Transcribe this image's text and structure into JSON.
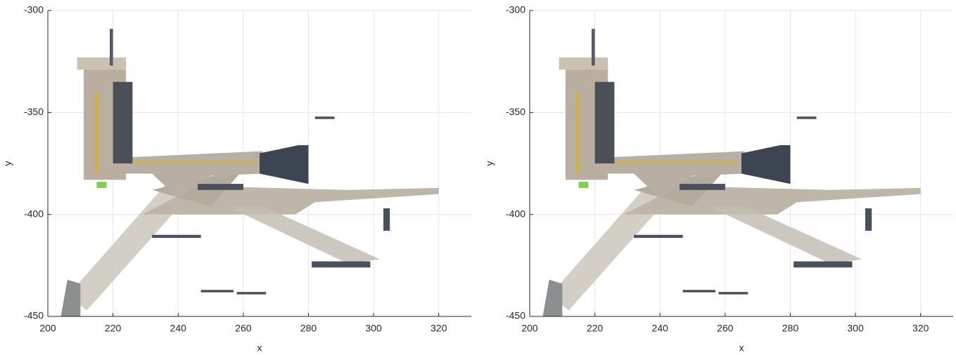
{
  "chart_data": [
    {
      "type": "pointcloud",
      "xlabel": "x",
      "ylabel": "y",
      "xlim": [
        200,
        330
      ],
      "ylim": [
        -450,
        -300
      ],
      "xticks": [
        200,
        220,
        240,
        260,
        280,
        300,
        320
      ],
      "yticks": [
        -450,
        -400,
        -350,
        -300
      ],
      "grid": true
    },
    {
      "type": "pointcloud",
      "xlabel": "x",
      "ylabel": "y",
      "xlim": [
        200,
        330
      ],
      "ylim": [
        -450,
        -300
      ],
      "xticks": [
        200,
        220,
        240,
        260,
        280,
        300,
        320
      ],
      "yticks": [
        -450,
        -400,
        -350,
        -300
      ],
      "grid": true
    }
  ]
}
